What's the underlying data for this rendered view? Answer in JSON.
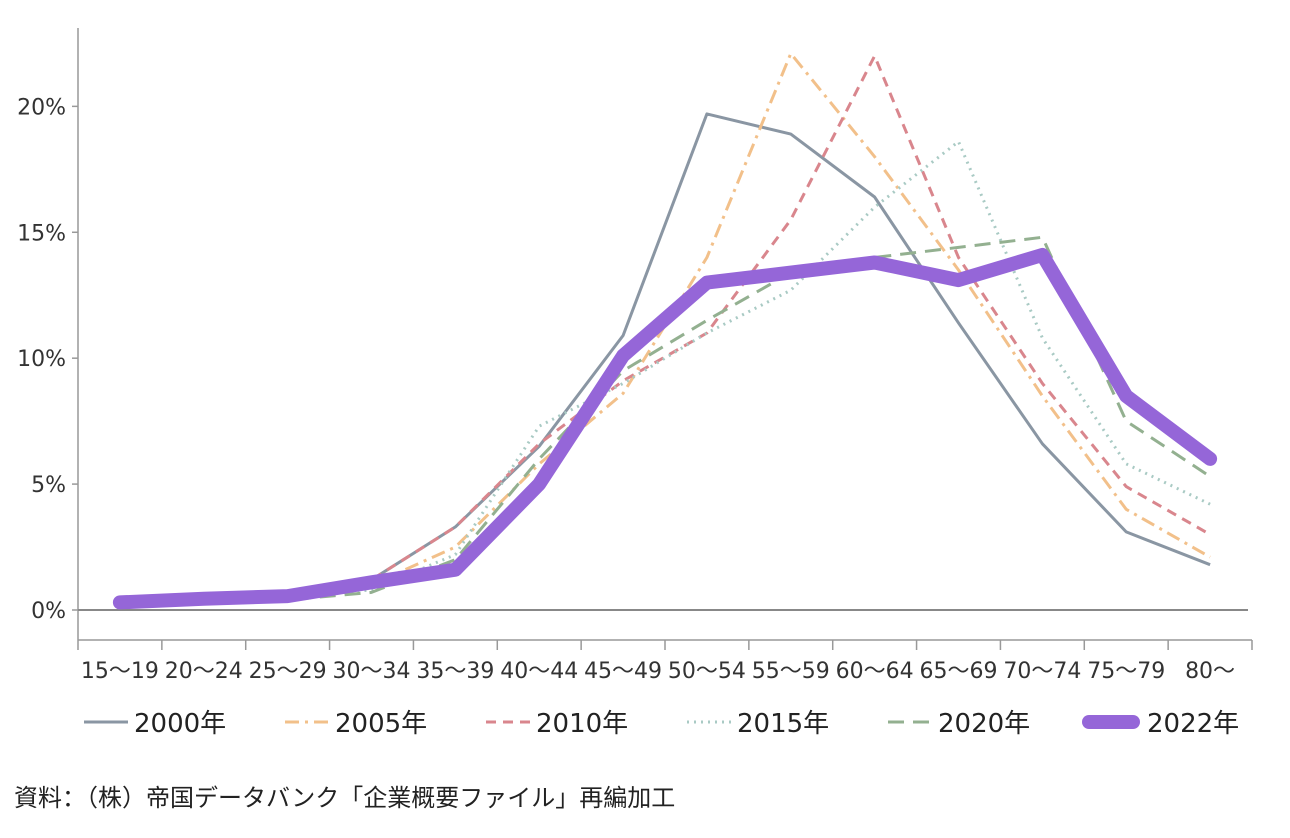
{
  "chart_data": {
    "type": "line",
    "categories": [
      "15～19",
      "20～24",
      "25～29",
      "30～34",
      "35～39",
      "40～44",
      "45～49",
      "50～54",
      "55～59",
      "60～64",
      "65～69",
      "70～74",
      "75～79",
      "80～"
    ],
    "ylim": [
      0,
      0.22
    ],
    "y_ticks": [
      {
        "value": 0,
        "label": "0%"
      },
      {
        "value": 0.05,
        "label": "5%"
      },
      {
        "value": 0.1,
        "label": "10%"
      },
      {
        "value": 0.15,
        "label": "15%"
      },
      {
        "value": 0.2,
        "label": "20%"
      }
    ],
    "grid": false,
    "legend_position": "bottom",
    "series": [
      {
        "name": "2000年",
        "color": "#8a96a3",
        "dash": "solid",
        "width": 3,
        "values": [
          0.002,
          0.003,
          0.005,
          0.012,
          0.033,
          0.065,
          0.109,
          0.197,
          0.189,
          0.164,
          0.114,
          0.066,
          0.031,
          0.018
        ]
      },
      {
        "name": "2005年",
        "color": "#f2c08a",
        "dash": "dashdot",
        "width": 3,
        "values": [
          0.002,
          0.003,
          0.005,
          0.01,
          0.025,
          0.058,
          0.086,
          0.14,
          0.221,
          0.18,
          0.135,
          0.085,
          0.04,
          0.021
        ]
      },
      {
        "name": "2010年",
        "color": "#d9868d",
        "dash": "dash",
        "width": 3,
        "values": [
          0.002,
          0.003,
          0.005,
          0.012,
          0.033,
          0.066,
          0.091,
          0.11,
          0.155,
          0.22,
          0.14,
          0.09,
          0.049,
          0.03
        ]
      },
      {
        "name": "2015年",
        "color": "#a9cac4",
        "dash": "dot",
        "width": 3,
        "values": [
          0.002,
          0.003,
          0.005,
          0.008,
          0.022,
          0.073,
          0.09,
          0.11,
          0.127,
          0.16,
          0.186,
          0.108,
          0.058,
          0.042
        ]
      },
      {
        "name": "2020年",
        "color": "#93b090",
        "dash": "longdash",
        "width": 3,
        "values": [
          0.002,
          0.003,
          0.004,
          0.007,
          0.02,
          0.06,
          0.095,
          0.115,
          0.134,
          0.14,
          0.144,
          0.148,
          0.075,
          0.053
        ]
      },
      {
        "name": "2022年",
        "color": "#9566d8",
        "dash": "solid",
        "width": 14,
        "values": [
          0.003,
          0.0045,
          0.0055,
          0.011,
          0.016,
          0.05,
          0.101,
          0.13,
          0.134,
          0.138,
          0.131,
          0.141,
          0.085,
          0.06
        ]
      }
    ]
  },
  "source": "資料：（株）帝国データバンク「企業概要ファイル」再編加工"
}
